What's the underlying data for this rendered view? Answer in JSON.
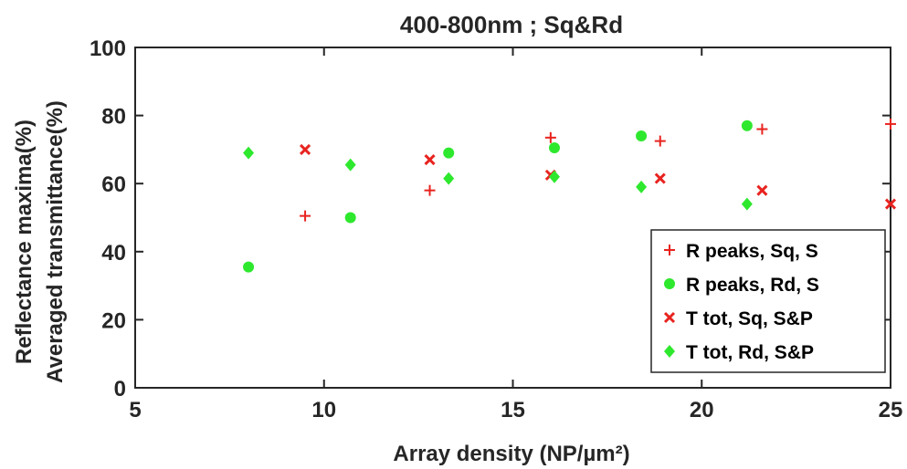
{
  "chart_data": {
    "type": "scatter",
    "title": "400-800nm ; Sq&Rd",
    "xlabel": "Array density (NP/µm²)",
    "ylabel_lines": [
      "Reflectance maxima(%)",
      "Averaged transmittance(%)"
    ],
    "xlim": [
      5,
      25
    ],
    "ylim": [
      0,
      100
    ],
    "xticks": [
      "5",
      "10",
      "15",
      "20",
      "25"
    ],
    "yticks": [
      "0",
      "20",
      "40",
      "60",
      "80",
      "100"
    ],
    "grid": false,
    "legend_position": "bottom-right",
    "series": [
      {
        "name": "R peaks, Sq, S",
        "marker": "plus",
        "color": "#e8231f",
        "points": [
          [
            9.5,
            50.5
          ],
          [
            12.8,
            58
          ],
          [
            16.0,
            73.5
          ],
          [
            18.9,
            72.5
          ],
          [
            21.6,
            76
          ],
          [
            25,
            77.5
          ]
        ]
      },
      {
        "name": "R peaks, Rd, S",
        "marker": "circle",
        "color": "#2ee82e",
        "points": [
          [
            8.0,
            35.5
          ],
          [
            10.7,
            50
          ],
          [
            13.3,
            69
          ],
          [
            16.1,
            70.5
          ],
          [
            18.4,
            74
          ],
          [
            21.2,
            77
          ]
        ]
      },
      {
        "name": "T tot, Sq, S&P",
        "marker": "cross",
        "color": "#e8231f",
        "points": [
          [
            9.5,
            70
          ],
          [
            12.8,
            67
          ],
          [
            16.0,
            62.5
          ],
          [
            18.9,
            61.5
          ],
          [
            21.6,
            58
          ],
          [
            25,
            54
          ]
        ]
      },
      {
        "name": "T tot, Rd, S&P",
        "marker": "diamond",
        "color": "#2ee82e",
        "points": [
          [
            8.0,
            69
          ],
          [
            10.7,
            65.5
          ],
          [
            13.3,
            61.5
          ],
          [
            16.1,
            62
          ],
          [
            18.4,
            59
          ],
          [
            21.2,
            54
          ]
        ]
      }
    ]
  }
}
